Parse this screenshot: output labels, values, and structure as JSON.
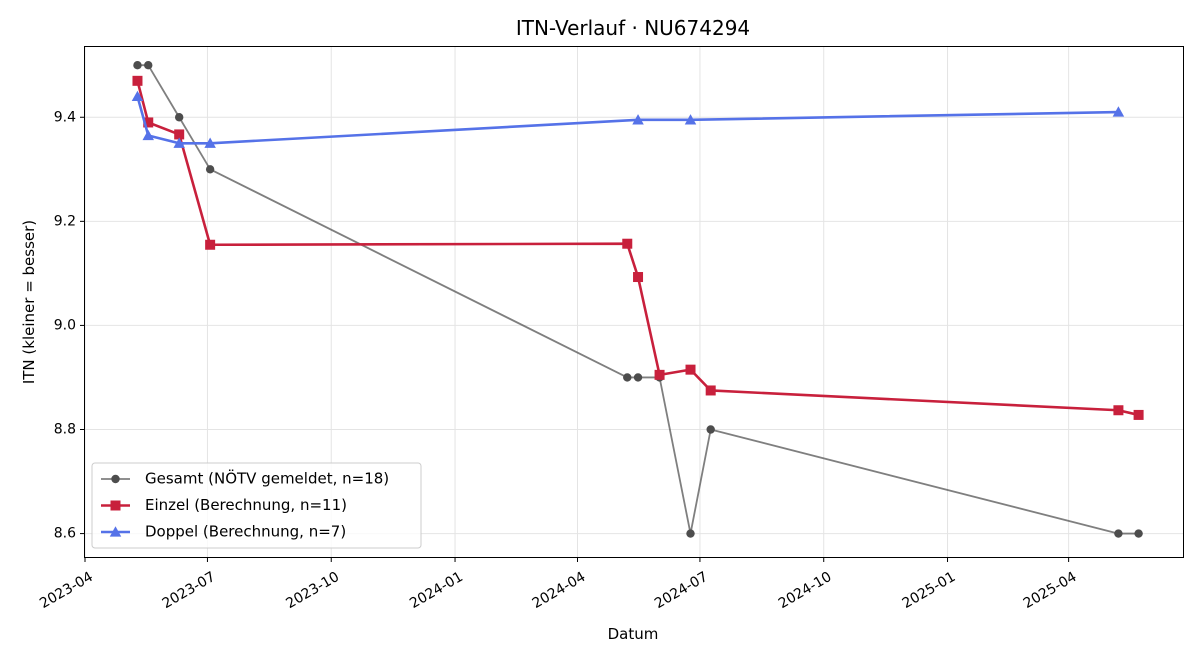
{
  "chart_data": {
    "type": "line",
    "title": "ITN-Verlauf · NU674294",
    "xlabel": "Datum",
    "ylabel": "ITN  (kleiner = besser)",
    "x_axis_type": "date",
    "xlim": [
      "2023-04-01",
      "2025-06-25"
    ],
    "ylim": [
      8.555,
      9.535
    ],
    "x_ticks": [
      "2023-04",
      "2023-07",
      "2023-10",
      "2024-01",
      "2024-04",
      "2024-07",
      "2024-10",
      "2025-01",
      "2025-04"
    ],
    "y_ticks": [
      8.6,
      8.8,
      9.0,
      9.2,
      9.4
    ],
    "y_tick_labels": [
      "8.6",
      "8.8",
      "9.0",
      "9.2",
      "9.4"
    ],
    "grid": true,
    "legend_position": "bottom-left",
    "series": [
      {
        "name": "Gesamt (NÖTV gemeldet, n=18)",
        "color": "#4d4d4d",
        "marker": "circle",
        "points": [
          {
            "x": "2023-05-10",
            "y": 9.5
          },
          {
            "x": "2023-05-18",
            "y": 9.5
          },
          {
            "x": "2023-06-10",
            "y": 9.4
          },
          {
            "x": "2023-07-03",
            "y": 9.3
          },
          {
            "x": "2024-05-08",
            "y": 8.9
          },
          {
            "x": "2024-05-16",
            "y": 8.9
          },
          {
            "x": "2024-06-01",
            "y": 8.9
          },
          {
            "x": "2024-06-24",
            "y": 8.6
          },
          {
            "x": "2024-07-09",
            "y": 8.8
          },
          {
            "x": "2025-05-08",
            "y": 8.6
          },
          {
            "x": "2025-05-23",
            "y": 8.6
          }
        ]
      },
      {
        "name": "Einzel (Berechnung, n=11)",
        "color": "#c8203c",
        "marker": "square",
        "points": [
          {
            "x": "2023-05-10",
            "y": 9.47
          },
          {
            "x": "2023-05-18",
            "y": 9.39
          },
          {
            "x": "2023-06-10",
            "y": 9.367
          },
          {
            "x": "2023-07-03",
            "y": 9.155
          },
          {
            "x": "2024-05-08",
            "y": 9.157
          },
          {
            "x": "2024-05-16",
            "y": 9.093
          },
          {
            "x": "2024-06-01",
            "y": 8.905
          },
          {
            "x": "2024-06-24",
            "y": 8.915
          },
          {
            "x": "2024-07-09",
            "y": 8.875
          },
          {
            "x": "2025-05-08",
            "y": 8.837
          },
          {
            "x": "2025-05-23",
            "y": 8.828
          }
        ]
      },
      {
        "name": "Doppel (Berechnung, n=7)",
        "color": "#5572e8",
        "marker": "triangle",
        "points": [
          {
            "x": "2023-05-10",
            "y": 9.44
          },
          {
            "x": "2023-05-18",
            "y": 9.365
          },
          {
            "x": "2023-06-10",
            "y": 9.35
          },
          {
            "x": "2023-07-03",
            "y": 9.35
          },
          {
            "x": "2024-05-16",
            "y": 9.395
          },
          {
            "x": "2024-06-24",
            "y": 9.395
          },
          {
            "x": "2025-05-08",
            "y": 9.41
          }
        ]
      }
    ]
  }
}
